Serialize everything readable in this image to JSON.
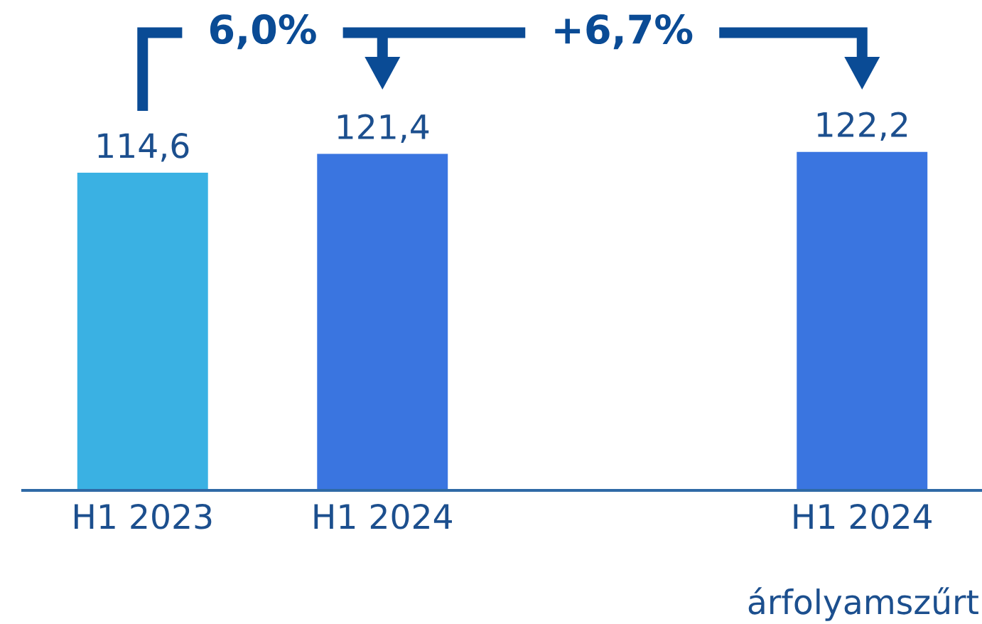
{
  "chart_data": {
    "type": "bar",
    "categories": [
      "H1 2023",
      "H1 2024",
      null,
      "H1 2024"
    ],
    "values": [
      114.6,
      121.4,
      null,
      122.2
    ],
    "colors": [
      "#3ab1e3",
      "#3a75e0",
      null,
      "#3a75e0"
    ],
    "value_labels": [
      "114,6",
      "121,4",
      null,
      "122,2"
    ],
    "annotations": [
      "6,0%",
      "+6,7%",
      "árfolyamszűrt"
    ]
  }
}
